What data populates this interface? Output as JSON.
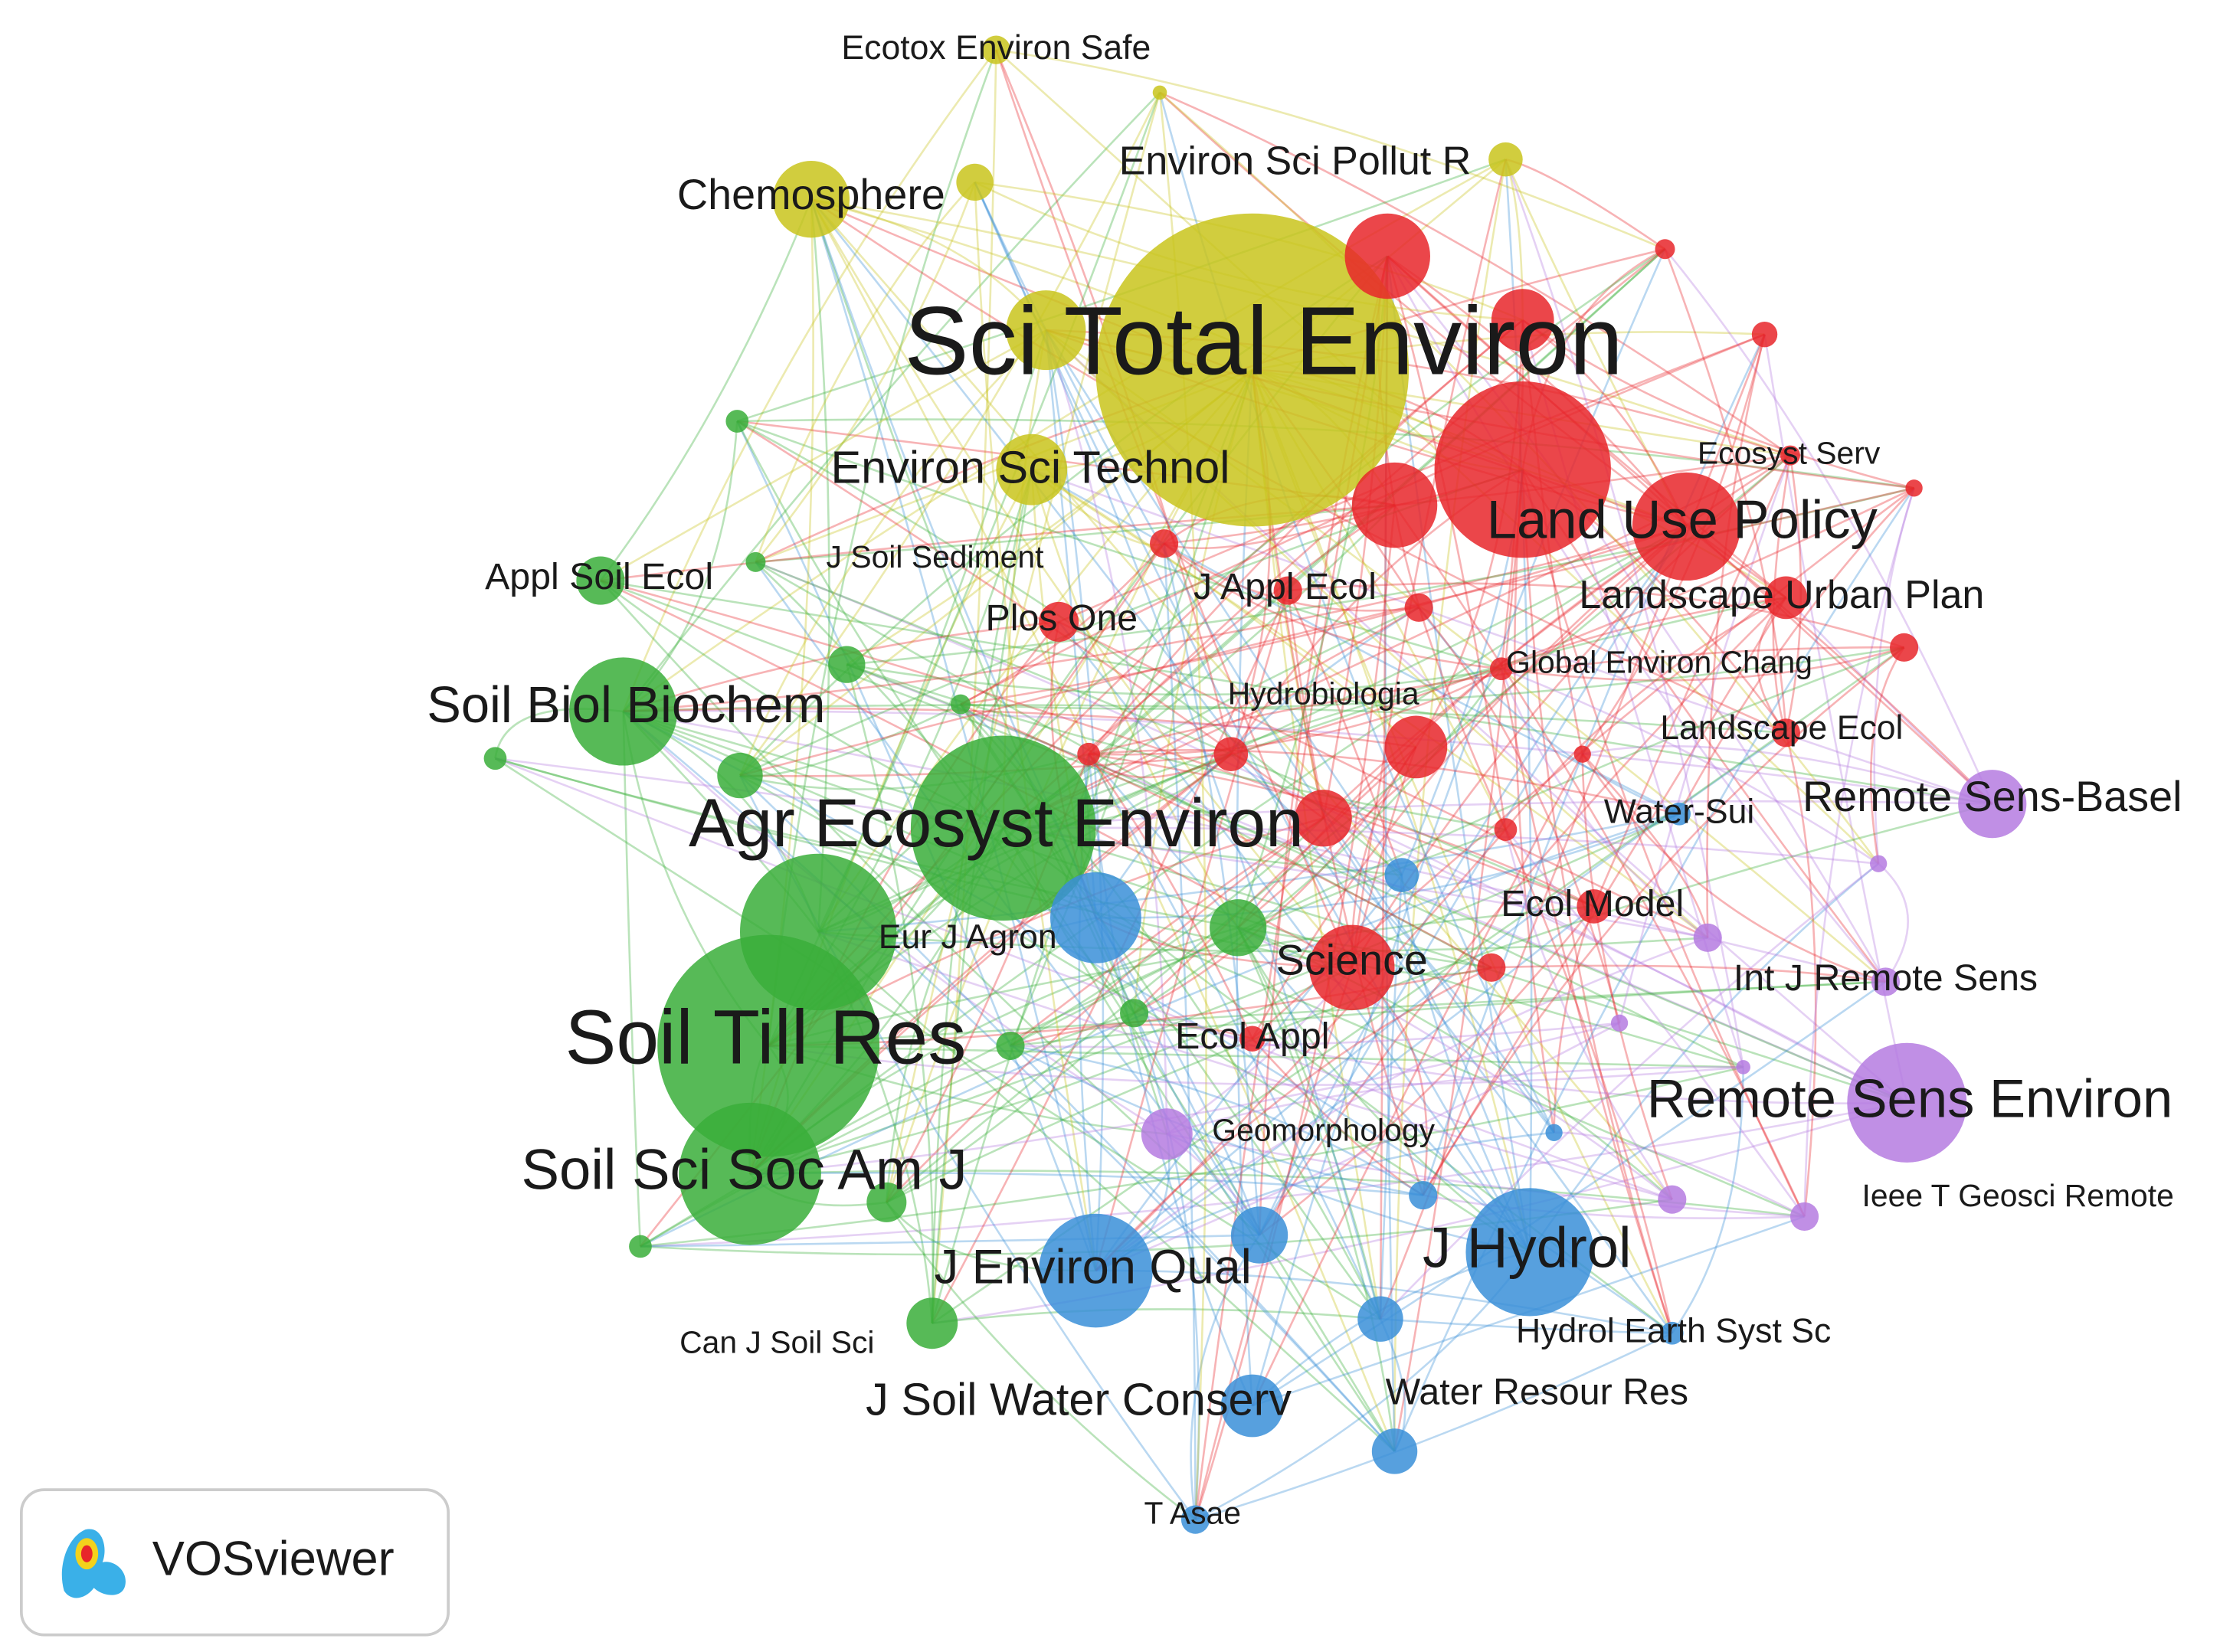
{
  "nodes": [
    {
      "label": "Sci Total Environ"
    },
    {
      "label": "Agr Ecosyst Environ"
    },
    {
      "label": "Soil Till Res"
    },
    {
      "label": "Land Use Policy"
    },
    {
      "label": "Remote Sens Environ"
    },
    {
      "label": "J Hydrol"
    },
    {
      "label": "Soil Sci Soc Am J"
    },
    {
      "label": "Soil Biol Biochem"
    },
    {
      "label": "J Environ Qual"
    },
    {
      "label": "Environ Sci Technol"
    },
    {
      "label": "Chemosphere"
    },
    {
      "label": "Environ Sci Pollut R"
    },
    {
      "label": "Ecotox Environ Safe"
    },
    {
      "label": "Appl Soil Ecol"
    },
    {
      "label": "J Soil Sediment"
    },
    {
      "label": "Plos One"
    },
    {
      "label": "J Appl Ecol"
    },
    {
      "label": "Landscape Urban Plan"
    },
    {
      "label": "Ecosyst Serv"
    },
    {
      "label": "Global Environ Chang"
    },
    {
      "label": "Hydrobiologia"
    },
    {
      "label": "Landscape Ecol"
    },
    {
      "label": "Remote Sens-Basel"
    },
    {
      "label": "Water-Sui"
    },
    {
      "label": "Ecol Model"
    },
    {
      "label": "Eur J Agron"
    },
    {
      "label": "Science"
    },
    {
      "label": "Int J Remote Sens"
    },
    {
      "label": "Ecol Appl"
    },
    {
      "label": "Geomorphology"
    },
    {
      "label": "Ieee T Geosci Remote"
    },
    {
      "label": "Hydrol Earth Syst Sc"
    },
    {
      "label": "Can J Soil Sci"
    },
    {
      "label": "J Soil Water Conserv"
    },
    {
      "label": "Water Resour Res"
    },
    {
      "label": "T Asae"
    }
  ],
  "logo": {
    "text": "VOSviewer"
  }
}
